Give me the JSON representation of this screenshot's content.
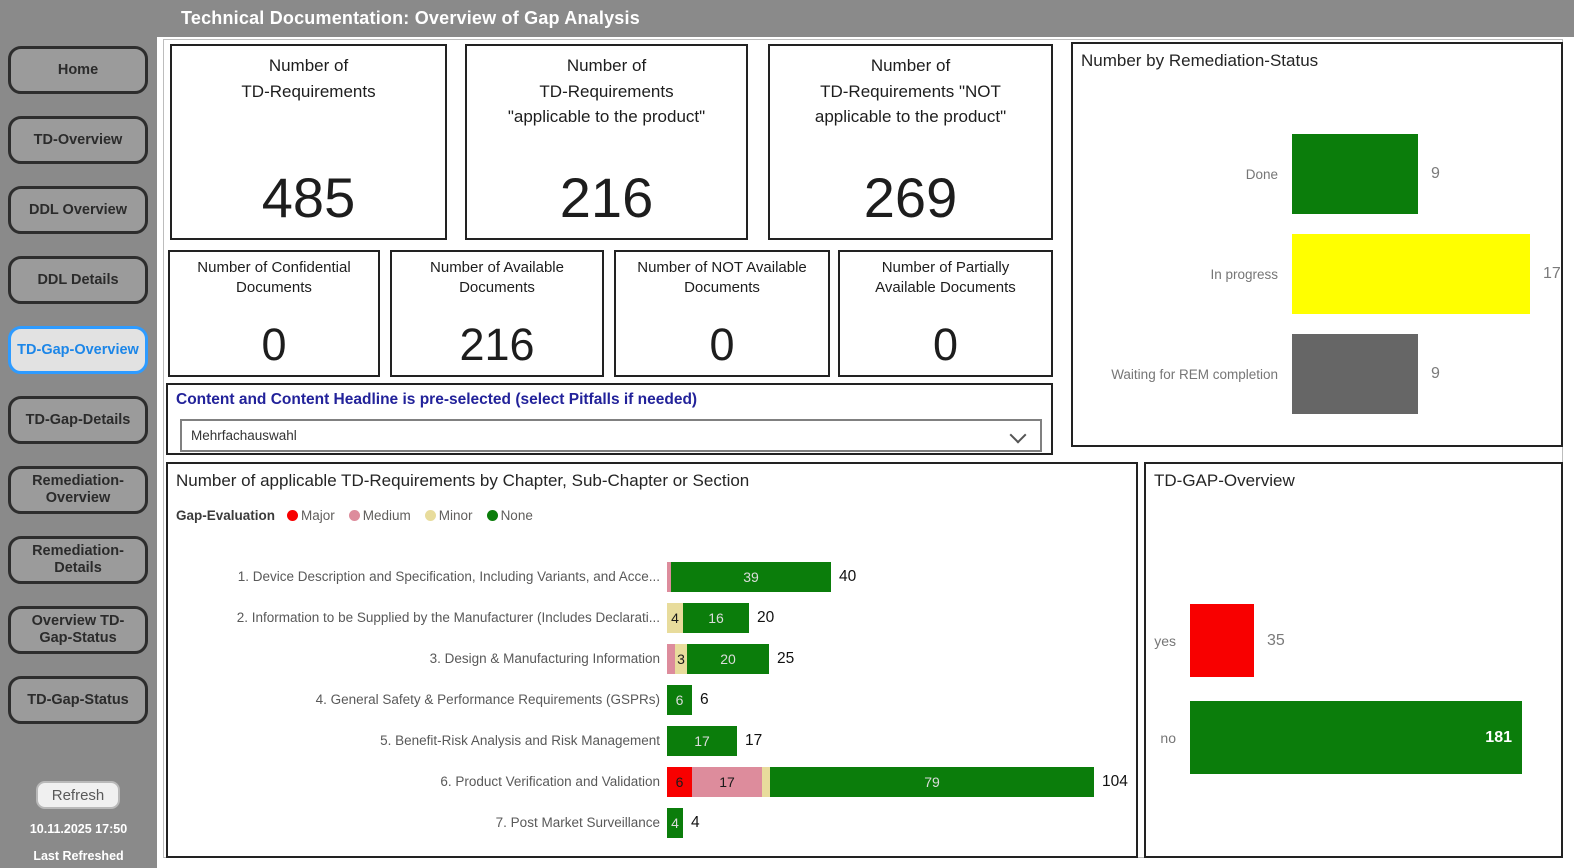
{
  "header": {
    "title": "Technical Documentation: Overview of Gap Analysis"
  },
  "sidebar": {
    "items": [
      {
        "label": "Home",
        "selected": false
      },
      {
        "label": "TD-Overview",
        "selected": false
      },
      {
        "label": "DDL Overview",
        "selected": false
      },
      {
        "label": "DDL Details",
        "selected": false
      },
      {
        "label": "TD-Gap-Overview",
        "selected": true
      },
      {
        "label": "TD-Gap-Details",
        "selected": false
      },
      {
        "label": "Remediation-\nOverview",
        "selected": false
      },
      {
        "label": "Remediation-\nDetails",
        "selected": false
      },
      {
        "label": "Overview TD-\nGap-Status",
        "selected": false
      },
      {
        "label": "TD-Gap-Status",
        "selected": false
      }
    ],
    "refresh_label": "Refresh",
    "last_refreshed_time": "10.11.2025 17:50",
    "last_refreshed_caption": "Last Refreshed"
  },
  "kpis_large": [
    {
      "title": "Number of\nTD-Requirements",
      "value": "485"
    },
    {
      "title": "Number of\nTD-Requirements\n\"applicable to the product\"",
      "value": "216"
    },
    {
      "title": "Number of\nTD-Requirements \"NOT\napplicable to the product\"",
      "value": "269"
    }
  ],
  "kpis_small": [
    {
      "title": "Number of Confidential\nDocuments",
      "value": "0"
    },
    {
      "title": "Number of Available\nDocuments",
      "value": "216"
    },
    {
      "title": "Number of NOT Available\nDocuments",
      "value": "0"
    },
    {
      "title": "Number of Partially\nAvailable Documents",
      "value": "0"
    }
  ],
  "filter": {
    "header": "Content and Content Headline is pre-selected (select Pitfalls if needed)",
    "dropdown_value": "Mehrfachauswahl"
  },
  "colors": {
    "major_red": "#F80000",
    "medium_pink": "#DD8C9C",
    "minor_khaki": "#E8DC9C",
    "none_green": "#0B7D0B",
    "in_progress_yellow": "#FFFF00",
    "waiting_gray": "#666666",
    "selected_nav_blue": "#2E9BFF",
    "filter_header_blue": "#22229A",
    "titlebar_gray": "#8A8A8A"
  },
  "chart_data": [
    {
      "id": "remediation",
      "type": "bar",
      "title": "Number by Remediation-Status",
      "orientation": "horizontal",
      "categories": [
        "Done",
        "In progress",
        "Waiting for REM completion"
      ],
      "values": [
        9,
        17,
        9
      ],
      "colors": [
        "#0B7D0B",
        "#FFFF00",
        "#666666"
      ],
      "label_position": [
        "outside",
        "outside",
        "outside"
      ],
      "xlim": [
        0,
        17
      ],
      "grid": false,
      "legend": "none"
    },
    {
      "id": "chapter",
      "type": "stacked-bar",
      "title": "Number of applicable TD-Requirements by Chapter, Sub-Chapter or Section",
      "orientation": "horizontal",
      "legend_title": "Gap-Evaluation",
      "legend_position": "top-left",
      "categories": [
        "1. Device Description and Specification, Including Variants, and Acce...",
        "2. Information to be Supplied by the Manufacturer (Includes Declarati...",
        "3. Design & Manufacturing Information",
        "4. General Safety & Performance Requirements (GSPRs)",
        "5. Benefit-Risk Analysis and Risk Management",
        "6. Product Verification and Validation",
        "7. Post Market Surveillance"
      ],
      "series": [
        {
          "name": "Major",
          "color": "#F80000",
          "text_color": "#1a1a1a",
          "values": [
            0,
            0,
            0,
            0,
            0,
            6,
            0
          ]
        },
        {
          "name": "Medium",
          "color": "#DD8C9C",
          "text_color": "#1a1a1a",
          "values": [
            1,
            0,
            2,
            0,
            0,
            17,
            0
          ]
        },
        {
          "name": "Minor",
          "color": "#E8DC9C",
          "text_color": "#1a1a1a",
          "values": [
            0,
            4,
            3,
            0,
            0,
            2,
            0
          ]
        },
        {
          "name": "None",
          "color": "#0B7D0B",
          "text_color": "#dcdcdc",
          "values": [
            39,
            16,
            20,
            6,
            17,
            79,
            4
          ]
        }
      ],
      "totals": [
        40,
        20,
        25,
        6,
        17,
        104,
        4
      ],
      "xlim": [
        0,
        104
      ],
      "grid": false
    },
    {
      "id": "tdgap",
      "type": "bar",
      "title": "TD-GAP-Overview",
      "orientation": "horizontal",
      "categories": [
        "yes",
        "no"
      ],
      "values": [
        35,
        181
      ],
      "colors": [
        "#F80000",
        "#0B7D0B"
      ],
      "label_position": [
        "outside",
        "inside"
      ],
      "xlim": [
        0,
        181
      ],
      "grid": false,
      "legend": "none"
    }
  ]
}
